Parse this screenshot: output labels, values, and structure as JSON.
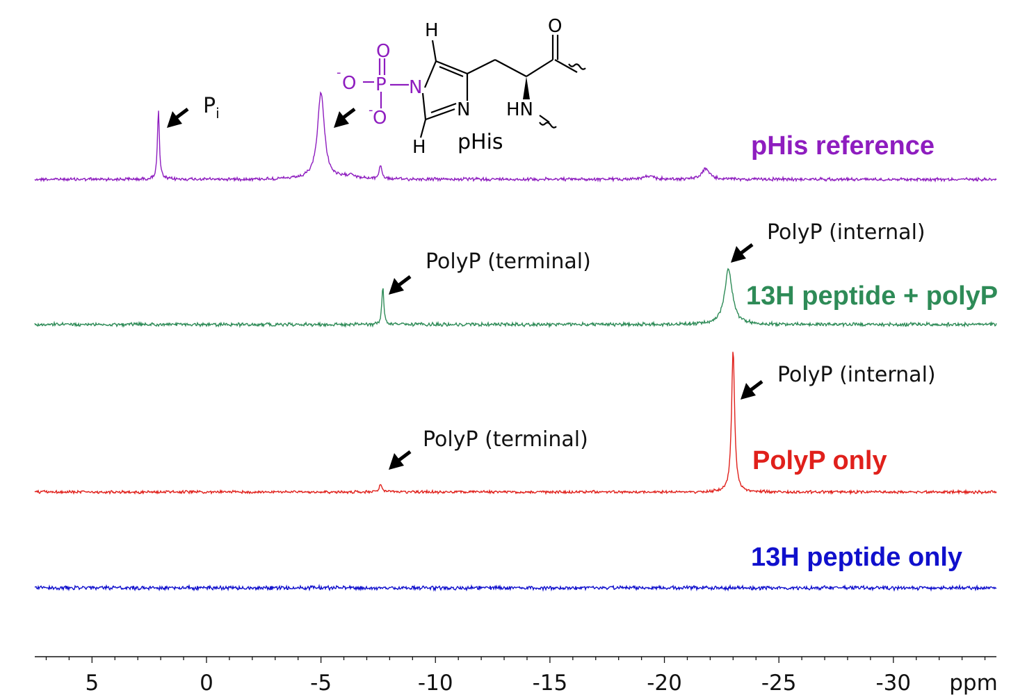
{
  "chart_data": {
    "type": "line",
    "xlabel": "ppm",
    "xlim": [
      7.5,
      -34.5
    ],
    "x_ticks": [
      5,
      0,
      -5,
      -10,
      -15,
      -20,
      -25,
      -30
    ],
    "x_tick_labels": [
      "5",
      "0",
      "-5",
      "-10",
      "-15",
      "-20",
      "-25",
      "-30"
    ],
    "grid": false,
    "series": [
      {
        "name": "pHis reference",
        "color": "#8E1DBF",
        "peaks": [
          {
            "x": 2.1,
            "height": 1.0,
            "width": 0.05
          },
          {
            "x": -5.0,
            "height": 1.25,
            "width": 0.18
          },
          {
            "x": -6.3,
            "height": 0.06,
            "width": 0.25
          },
          {
            "x": -7.6,
            "height": 0.2,
            "width": 0.07
          },
          {
            "x": -19.3,
            "height": 0.04,
            "width": 0.3
          },
          {
            "x": -21.8,
            "height": 0.15,
            "width": 0.2
          }
        ]
      },
      {
        "name": "13H peptide + polyP",
        "color": "#2E8B57",
        "peaks": [
          {
            "x": -7.7,
            "height": 0.55,
            "width": 0.05
          },
          {
            "x": -22.8,
            "height": 0.8,
            "width": 0.2
          }
        ]
      },
      {
        "name": "PolyP only",
        "color": "#E0201B",
        "peaks": [
          {
            "x": -7.6,
            "height": 0.12,
            "width": 0.06
          },
          {
            "x": -23.0,
            "height": 2.05,
            "width": 0.08
          }
        ]
      },
      {
        "name": "13H peptide only",
        "color": "#1010CC",
        "peaks": []
      }
    ],
    "annotations": [
      {
        "text": "P",
        "subscript": "i",
        "target_series": "pHis reference"
      },
      {
        "text": "PolyP (terminal)",
        "target_series": "13H peptide + polyP"
      },
      {
        "text": "PolyP (internal)",
        "target_series": "13H peptide + polyP"
      },
      {
        "text": "PolyP (internal)",
        "target_series": "PolyP only"
      },
      {
        "text": "PolyP (terminal)",
        "target_series": "PolyP only"
      }
    ]
  },
  "structure": {
    "name": "pHis",
    "atoms": {
      "h_top": "H",
      "h_bottom": "H",
      "n1": "N",
      "n3": "N",
      "p": "P",
      "o_double": "O",
      "o_minus_left": "O",
      "o_minus_bottom": "O",
      "minus": "-",
      "o_carbonyl": "O",
      "hn": "HN"
    },
    "phosphate_color": "#8E1DBF"
  }
}
